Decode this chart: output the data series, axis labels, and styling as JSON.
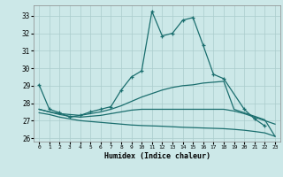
{
  "title": "",
  "xlabel": "Humidex (Indice chaleur)",
  "bg_color": "#cce8e8",
  "grid_color": "#aacccc",
  "line_color": "#1a6e6e",
  "xlim": [
    -0.5,
    23.5
  ],
  "ylim": [
    25.8,
    33.6
  ],
  "yticks": [
    26,
    27,
    28,
    29,
    30,
    31,
    32,
    33
  ],
  "xticks": [
    0,
    1,
    2,
    3,
    4,
    5,
    6,
    7,
    8,
    9,
    10,
    11,
    12,
    13,
    14,
    15,
    16,
    17,
    18,
    19,
    20,
    21,
    22,
    23
  ],
  "series": [
    {
      "x": [
        0,
        1,
        2,
        3,
        4,
        5,
        6,
        7,
        8,
        9,
        10,
        11,
        12,
        13,
        14,
        15,
        16,
        17,
        18,
        20,
        21,
        22
      ],
      "y": [
        29.05,
        27.65,
        27.45,
        27.2,
        27.3,
        27.5,
        27.65,
        27.8,
        28.75,
        29.5,
        29.85,
        33.25,
        31.85,
        32.0,
        32.75,
        32.9,
        31.3,
        29.65,
        29.4,
        27.65,
        27.1,
        26.7
      ],
      "marker": true
    },
    {
      "x": [
        0,
        1,
        2,
        3,
        4,
        5,
        6,
        7,
        8,
        9,
        10,
        11,
        12,
        13,
        14,
        15,
        16,
        17,
        18,
        19,
        20,
        21,
        22,
        23
      ],
      "y": [
        27.65,
        27.5,
        27.4,
        27.35,
        27.3,
        27.4,
        27.5,
        27.65,
        27.85,
        28.1,
        28.35,
        28.55,
        28.75,
        28.9,
        29.0,
        29.05,
        29.15,
        29.2,
        29.25,
        27.65,
        27.45,
        27.25,
        27.05,
        26.1
      ],
      "marker": false
    },
    {
      "x": [
        0,
        1,
        2,
        3,
        4,
        5,
        6,
        7,
        8,
        9,
        10,
        11,
        12,
        13,
        14,
        15,
        16,
        17,
        18,
        19,
        20,
        21,
        22,
        23
      ],
      "y": [
        27.65,
        27.5,
        27.35,
        27.25,
        27.2,
        27.25,
        27.3,
        27.4,
        27.5,
        27.6,
        27.65,
        27.65,
        27.65,
        27.65,
        27.65,
        27.65,
        27.65,
        27.65,
        27.65,
        27.55,
        27.4,
        27.2,
        27.0,
        26.8
      ],
      "marker": false
    },
    {
      "x": [
        0,
        1,
        2,
        3,
        4,
        5,
        6,
        7,
        8,
        9,
        10,
        11,
        12,
        13,
        14,
        15,
        16,
        17,
        18,
        19,
        20,
        21,
        22,
        23
      ],
      "y": [
        27.45,
        27.35,
        27.2,
        27.1,
        27.0,
        26.95,
        26.9,
        26.85,
        26.8,
        26.75,
        26.72,
        26.7,
        26.68,
        26.65,
        26.62,
        26.6,
        26.58,
        26.56,
        26.54,
        26.5,
        26.45,
        26.38,
        26.3,
        26.1
      ],
      "marker": false
    }
  ]
}
